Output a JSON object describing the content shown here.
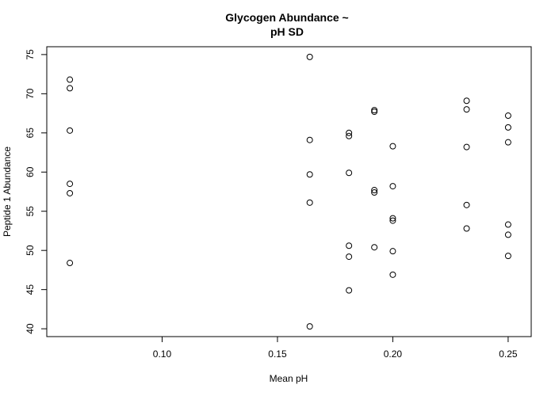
{
  "chart_data": {
    "type": "scatter",
    "title_lines": [
      "Glycogen Abundance ~",
      "pH SD"
    ],
    "xlabel": "Mean pH",
    "ylabel": "Peptide 1 Abundance",
    "xlim": [
      0.05,
      0.26
    ],
    "ylim": [
      39,
      76
    ],
    "xticks": [
      0.1,
      0.15,
      0.2,
      0.25
    ],
    "xtick_labels": [
      "0.10",
      "0.15",
      "0.20",
      "0.25"
    ],
    "yticks": [
      40,
      45,
      50,
      55,
      60,
      65,
      70,
      75
    ],
    "ytick_labels": [
      "40",
      "45",
      "50",
      "55",
      "60",
      "65",
      "70",
      "75"
    ],
    "grid": false,
    "points": [
      {
        "x": 0.06,
        "y": 71.8
      },
      {
        "x": 0.06,
        "y": 70.7
      },
      {
        "x": 0.06,
        "y": 65.3
      },
      {
        "x": 0.06,
        "y": 58.5
      },
      {
        "x": 0.06,
        "y": 57.3
      },
      {
        "x": 0.06,
        "y": 48.4
      },
      {
        "x": 0.164,
        "y": 74.7
      },
      {
        "x": 0.164,
        "y": 64.1
      },
      {
        "x": 0.164,
        "y": 59.7
      },
      {
        "x": 0.164,
        "y": 56.1
      },
      {
        "x": 0.164,
        "y": 40.3
      },
      {
        "x": 0.181,
        "y": 65.0
      },
      {
        "x": 0.181,
        "y": 64.6
      },
      {
        "x": 0.181,
        "y": 59.9
      },
      {
        "x": 0.181,
        "y": 50.6
      },
      {
        "x": 0.181,
        "y": 49.2
      },
      {
        "x": 0.181,
        "y": 44.9
      },
      {
        "x": 0.192,
        "y": 67.9
      },
      {
        "x": 0.192,
        "y": 67.7
      },
      {
        "x": 0.192,
        "y": 57.7
      },
      {
        "x": 0.192,
        "y": 57.4
      },
      {
        "x": 0.192,
        "y": 50.4
      },
      {
        "x": 0.2,
        "y": 63.3
      },
      {
        "x": 0.2,
        "y": 58.2
      },
      {
        "x": 0.2,
        "y": 54.1
      },
      {
        "x": 0.2,
        "y": 53.8
      },
      {
        "x": 0.2,
        "y": 49.9
      },
      {
        "x": 0.2,
        "y": 46.9
      },
      {
        "x": 0.232,
        "y": 69.1
      },
      {
        "x": 0.232,
        "y": 68.0
      },
      {
        "x": 0.232,
        "y": 63.2
      },
      {
        "x": 0.232,
        "y": 55.8
      },
      {
        "x": 0.232,
        "y": 52.8
      },
      {
        "x": 0.25,
        "y": 67.2
      },
      {
        "x": 0.25,
        "y": 65.7
      },
      {
        "x": 0.25,
        "y": 63.8
      },
      {
        "x": 0.25,
        "y": 53.3
      },
      {
        "x": 0.25,
        "y": 52.0
      },
      {
        "x": 0.25,
        "y": 49.3
      }
    ]
  }
}
